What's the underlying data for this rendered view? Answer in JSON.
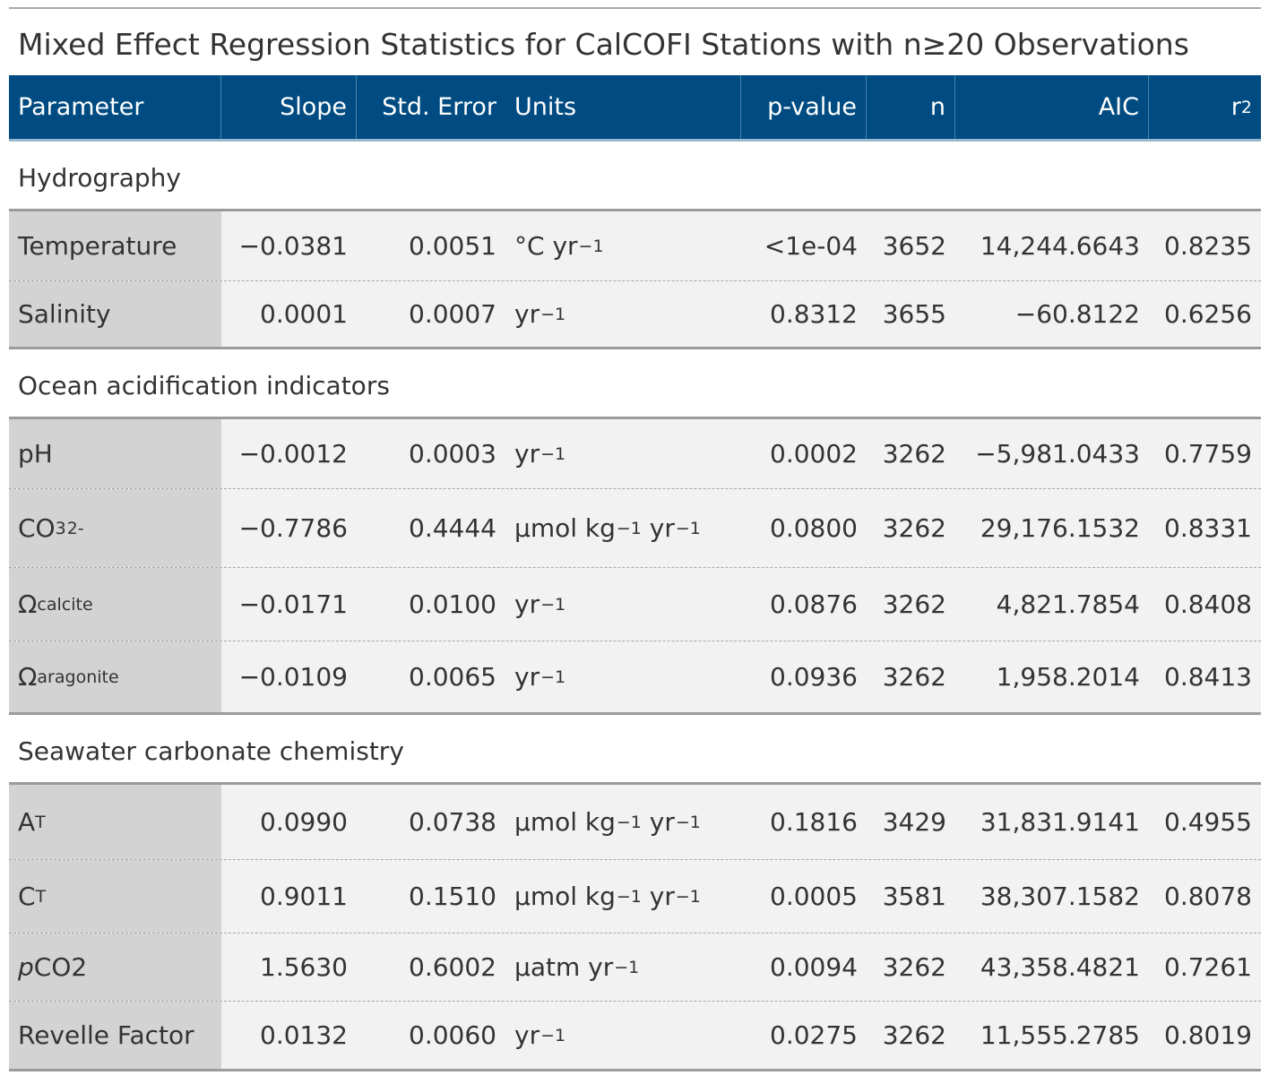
{
  "title": "Mixed Effect Regression Statistics for CalCOFI Stations with n≥20 Observations",
  "header": {
    "parameter": "Parameter",
    "slope": "Slope",
    "std_error": "Std. Error",
    "units": "Units",
    "p_value": "p-value",
    "n": "n",
    "aic": "AIC",
    "r2_base": "r",
    "r2_exp": "2"
  },
  "groups": [
    {
      "label": "Hydrography",
      "rows": [
        {
          "param": "Temperature",
          "slope": "−0.0381",
          "se": "0.0051",
          "unit_base": "°C yr",
          "unit_exp": "−1",
          "p": "<1e-04",
          "n": "3652",
          "aic": "14,244.6643",
          "r2": "0.8235"
        },
        {
          "param": "Salinity",
          "slope": "0.0001",
          "se": "0.0007",
          "unit_base": "yr",
          "unit_exp": "−1",
          "p": "0.8312",
          "n": "3655",
          "aic": "−60.8122",
          "r2": "0.6256"
        }
      ]
    },
    {
      "label": "Ocean acidification indicators",
      "rows": [
        {
          "param": "pH",
          "slope": "−0.0012",
          "se": "0.0003",
          "unit_base": "yr",
          "unit_exp": "−1",
          "p": "0.0002",
          "n": "3262",
          "aic": "−5,981.0433",
          "r2": "0.7759"
        },
        {
          "param_base": "CO",
          "param_sub": "3",
          "param_sup": "2-",
          "slope": "−0.7786",
          "se": "0.4444",
          "unit_a": "μmol kg",
          "unit_a_exp": "−1",
          "unit_b": " yr",
          "unit_b_exp": "−1",
          "p": "0.0800",
          "n": "3262",
          "aic": "29,176.1532",
          "r2": "0.8331"
        },
        {
          "param_base": "Ω",
          "param_sub": "calcite",
          "slope": "−0.0171",
          "se": "0.0100",
          "unit_base": "yr",
          "unit_exp": "−1",
          "p": "0.0876",
          "n": "3262",
          "aic": "4,821.7854",
          "r2": "0.8408"
        },
        {
          "param_base": "Ω",
          "param_sub": "aragonite",
          "slope": "−0.0109",
          "se": "0.0065",
          "unit_base": "yr",
          "unit_exp": "−1",
          "p": "0.0936",
          "n": "3262",
          "aic": "1,958.2014",
          "r2": "0.8413"
        }
      ]
    },
    {
      "label": "Seawater carbonate chemistry",
      "rows": [
        {
          "param_base": "A",
          "param_sub": "T",
          "slope": "0.0990",
          "se": "0.0738",
          "unit_a": "μmol kg",
          "unit_a_exp": "−1",
          "unit_b": " yr",
          "unit_b_exp": "−1",
          "p": "0.1816",
          "n": "3429",
          "aic": "31,831.9141",
          "r2": "0.4955"
        },
        {
          "param_base": "C",
          "param_sub": "T",
          "slope": "0.9011",
          "se": "0.1510",
          "unit_a": "μmol kg",
          "unit_a_exp": "−1",
          "unit_b": " yr",
          "unit_b_exp": "−1",
          "p": "0.0005",
          "n": "3581",
          "aic": "38,307.1582",
          "r2": "0.8078"
        },
        {
          "param_italic": "p",
          "param_rest": "CO2",
          "slope": "1.5630",
          "se": "0.6002",
          "unit_base": "μatm yr",
          "unit_exp": "−1",
          "p": "0.0094",
          "n": "3262",
          "aic": "43,358.4821",
          "r2": "0.7261"
        },
        {
          "param": "Revelle Factor",
          "slope": "0.0132",
          "se": "0.0060",
          "unit_base": "yr",
          "unit_exp": "−1",
          "p": "0.0275",
          "n": "3262",
          "aic": "11,555.2785",
          "r2": "0.8019"
        }
      ]
    }
  ]
}
